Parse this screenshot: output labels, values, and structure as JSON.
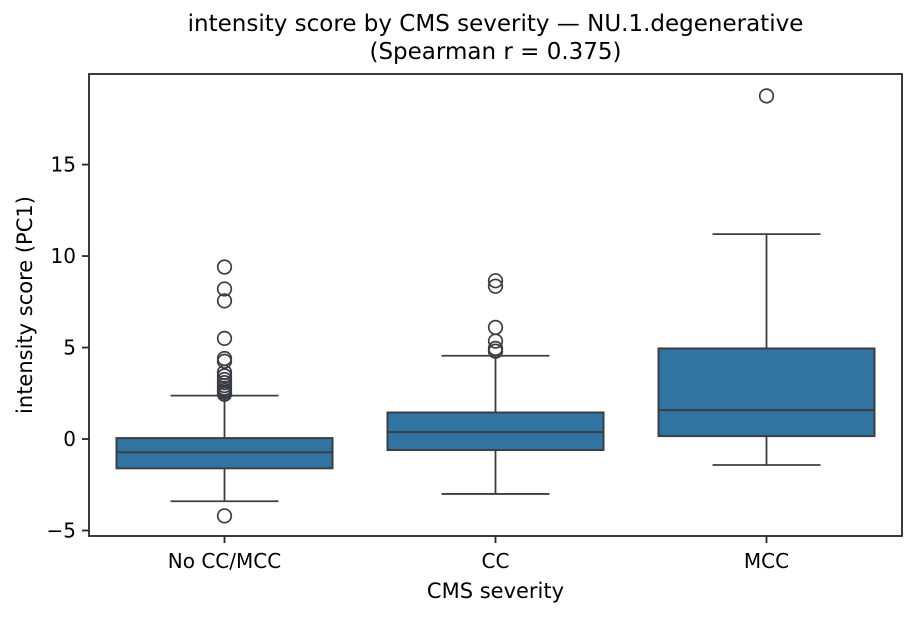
{
  "chart_data": {
    "type": "box",
    "title": "intensity score by CMS severity — NU.1.degenerative",
    "subtitle": "(Spearman r = 0.375)",
    "xlabel": "CMS severity",
    "ylabel": "intensity score (PC1)",
    "categories": [
      "No CC/MCC",
      "CC",
      "MCC"
    ],
    "y_ticks": [
      -5,
      0,
      5,
      10,
      15
    ],
    "ylim": [
      -5.3,
      19.95
    ],
    "grid": false,
    "legend": false,
    "series": [
      {
        "label": "No CC/MCC",
        "whisker_low": -3.4,
        "q1": -1.6,
        "median": -0.72,
        "q3": 0.05,
        "whisker_high": 2.37,
        "outliers": [
          -4.2,
          2.45,
          2.55,
          2.65,
          2.78,
          2.92,
          3.08,
          3.25,
          3.45,
          3.65,
          4.25,
          4.4,
          5.5,
          7.55,
          8.2,
          9.4
        ]
      },
      {
        "label": "CC",
        "whisker_low": -3.0,
        "q1": -0.6,
        "median": 0.38,
        "q3": 1.45,
        "whisker_high": 4.55,
        "outliers": [
          4.8,
          4.95,
          5.35,
          6.1,
          8.35,
          8.65
        ]
      },
      {
        "label": "MCC",
        "whisker_low": -1.42,
        "q1": 0.16,
        "median": 1.58,
        "q3": 4.95,
        "whisker_high": 11.2,
        "outliers": [
          18.75
        ]
      }
    ],
    "colors": {
      "box_fill": "#3274a1",
      "element_lines": "#3a3e43",
      "spines": "#262626",
      "text": "#000000"
    }
  }
}
